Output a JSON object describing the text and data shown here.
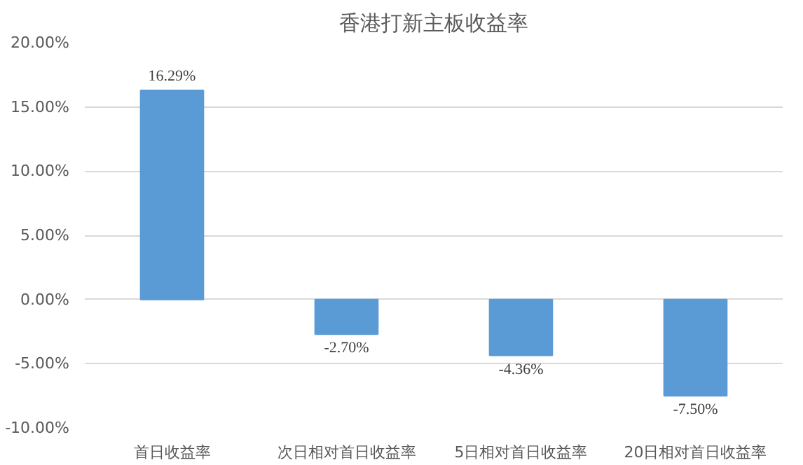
{
  "chart_data": {
    "type": "bar",
    "title": "香港打新主板收益率",
    "categories": [
      "首日收益率",
      "次日相对首日收益率",
      "5日相对首日收益率",
      "20日相对首日收益率"
    ],
    "values": [
      16.29,
      -2.7,
      -4.36,
      -7.5
    ],
    "value_labels": [
      "16.29%",
      "-2.70%",
      "-4.36%",
      "-7.50%"
    ],
    "color": "#5b9bd5",
    "ylim": [
      -10,
      20
    ],
    "yticks": [
      {
        "value": -10,
        "label": "-10.00%"
      },
      {
        "value": -5,
        "label": "-5.00%"
      },
      {
        "value": 0,
        "label": "0.00%"
      },
      {
        "value": 5,
        "label": "5.00%"
      },
      {
        "value": 10,
        "label": "10.00%"
      },
      {
        "value": 15,
        "label": "15.00%"
      },
      {
        "value": 20,
        "label": "20.00%"
      }
    ],
    "grid": "y"
  }
}
